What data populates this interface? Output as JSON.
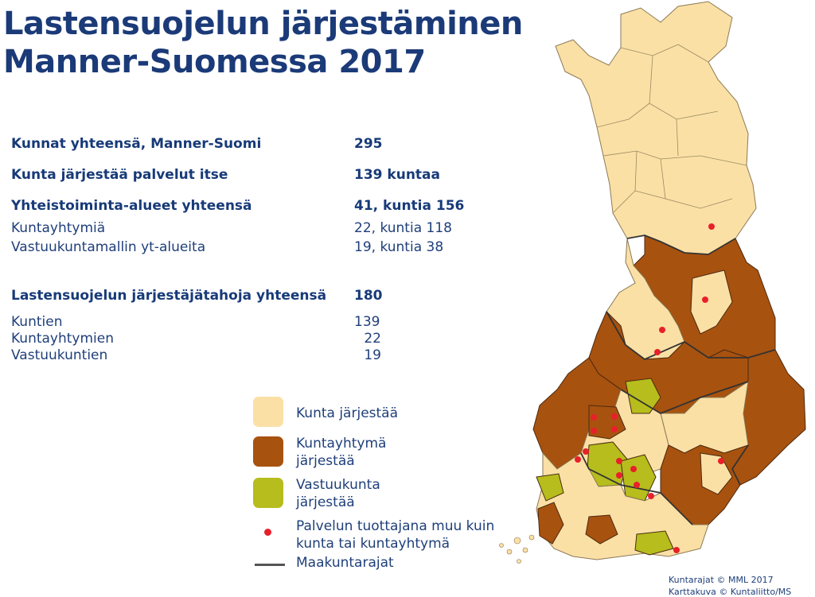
{
  "title": {
    "line1": "Lastensuojelun järjestäminen",
    "line2": "Manner-Suomessa 2017"
  },
  "stats": {
    "rows": [
      {
        "label": "Kunnat yhteensä, Manner-Suomi",
        "value": "295"
      },
      {
        "label": "Kunta järjestää palvelut itse",
        "value": "139 kuntaa"
      },
      {
        "label": "Yhteistoiminta-alueet yhteensä",
        "value": "41, kuntia 156"
      },
      {
        "label": "Kuntayhtymiä",
        "value": "22, kuntia 118"
      },
      {
        "label": "Vastuukuntamallin yt-alueita",
        "value": "19, kuntia 38"
      },
      {
        "label": "Lastensuojelun järjestäjätahoja yhteensä",
        "value": "180"
      },
      {
        "label": "Kuntien",
        "value": "139"
      },
      {
        "label": "Kuntayhtymien",
        "value": "22"
      },
      {
        "label": "Vastuukuntien",
        "value": "19"
      }
    ]
  },
  "legend": {
    "items": [
      {
        "label_line1": "Kunta järjestää",
        "label_line2": "",
        "color": "#fbe0a6"
      },
      {
        "label_line1": "Kuntayhtymä",
        "label_line2": "järjestää",
        "color": "#a8520f"
      },
      {
        "label_line1": "Vastuukunta",
        "label_line2": "järjestää",
        "color": "#b6bd1c"
      },
      {
        "label_line1": "Palvelun tuottajana muu kuin",
        "label_line2": "kunta tai kuntayhtymä",
        "color": "#e8202a"
      },
      {
        "label_line1": "Maakuntarajat",
        "label_line2": "",
        "color": "#555555"
      }
    ]
  },
  "credits": {
    "line1": "Kuntarajat © MML 2017",
    "line2": "Karttakuva © Kuntaliitto/MS"
  }
}
